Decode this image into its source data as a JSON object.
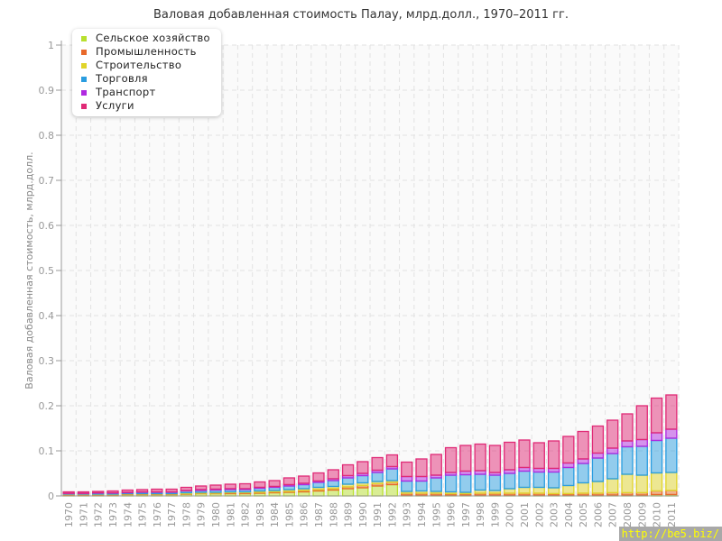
{
  "chart_data": {
    "type": "bar",
    "stacked": true,
    "title": "Валовая добавленная стоимость Палау, млрд.долл., 1970–2011 гг.",
    "xlabel": "",
    "ylabel": "Валовая добавленная стоимость, млрд.долл.",
    "ylim": [
      0,
      1
    ],
    "yticks": [
      "0",
      "0.1",
      "0.2",
      "0.3",
      "0.4",
      "0.5",
      "0.6",
      "0.7",
      "0.8",
      "0.9",
      "1"
    ],
    "grid": true,
    "legend_position": "top-left",
    "categories": [
      "1970",
      "1971",
      "1972",
      "1973",
      "1974",
      "1975",
      "1976",
      "1977",
      "1978",
      "1979",
      "1980",
      "1981",
      "1982",
      "1983",
      "1984",
      "1985",
      "1986",
      "1987",
      "1988",
      "1989",
      "1990",
      "1991",
      "1992",
      "1993",
      "1994",
      "1995",
      "1996",
      "1997",
      "1998",
      "1999",
      "2000",
      "2001",
      "2002",
      "2003",
      "2004",
      "2005",
      "2006",
      "2007",
      "2008",
      "2009",
      "2010",
      "2011"
    ],
    "series": [
      {
        "name": "Сельское хозяйство",
        "color": "#b8e02e",
        "values": [
          0.002,
          0.002,
          0.002,
          0.002,
          0.003,
          0.003,
          0.003,
          0.003,
          0.004,
          0.005,
          0.005,
          0.005,
          0.005,
          0.006,
          0.007,
          0.008,
          0.009,
          0.011,
          0.013,
          0.016,
          0.018,
          0.022,
          0.025,
          0.002,
          0.002,
          0.002,
          0.002,
          0.002,
          0.002,
          0.002,
          0.002,
          0.002,
          0.002,
          0.002,
          0.002,
          0.002,
          0.002,
          0.002,
          0.002,
          0.002,
          0.003,
          0.003
        ]
      },
      {
        "name": "Промышленность",
        "color": "#e8692a",
        "values": [
          0.001,
          0.001,
          0.001,
          0.001,
          0.001,
          0.001,
          0.001,
          0.001,
          0.001,
          0.001,
          0.001,
          0.002,
          0.002,
          0.002,
          0.002,
          0.002,
          0.003,
          0.003,
          0.003,
          0.004,
          0.005,
          0.005,
          0.005,
          0.004,
          0.004,
          0.004,
          0.003,
          0.003,
          0.004,
          0.004,
          0.004,
          0.004,
          0.004,
          0.003,
          0.003,
          0.004,
          0.004,
          0.005,
          0.005,
          0.005,
          0.008,
          0.009
        ]
      },
      {
        "name": "Строительство",
        "color": "#e0d42a",
        "values": [
          0.001,
          0.001,
          0.001,
          0.001,
          0.001,
          0.001,
          0.001,
          0.001,
          0.002,
          0.002,
          0.002,
          0.002,
          0.002,
          0.003,
          0.003,
          0.004,
          0.004,
          0.005,
          0.005,
          0.006,
          0.006,
          0.005,
          0.004,
          0.004,
          0.005,
          0.004,
          0.004,
          0.003,
          0.007,
          0.006,
          0.01,
          0.013,
          0.013,
          0.013,
          0.018,
          0.023,
          0.026,
          0.031,
          0.041,
          0.039,
          0.04,
          0.04
        ]
      },
      {
        "name": "Торговля",
        "color": "#2a9de0",
        "values": [
          0.001,
          0.001,
          0.002,
          0.002,
          0.002,
          0.003,
          0.003,
          0.003,
          0.004,
          0.004,
          0.005,
          0.005,
          0.005,
          0.006,
          0.007,
          0.008,
          0.009,
          0.011,
          0.013,
          0.014,
          0.016,
          0.02,
          0.026,
          0.023,
          0.022,
          0.03,
          0.037,
          0.039,
          0.035,
          0.034,
          0.034,
          0.036,
          0.034,
          0.035,
          0.04,
          0.043,
          0.052,
          0.056,
          0.061,
          0.064,
          0.072,
          0.076
        ]
      },
      {
        "name": "Транспорт",
        "color": "#b02ae0",
        "values": [
          0.001,
          0.001,
          0.001,
          0.001,
          0.001,
          0.001,
          0.001,
          0.001,
          0.001,
          0.002,
          0.002,
          0.002,
          0.002,
          0.002,
          0.002,
          0.003,
          0.003,
          0.003,
          0.004,
          0.005,
          0.005,
          0.005,
          0.005,
          0.01,
          0.01,
          0.006,
          0.006,
          0.008,
          0.008,
          0.006,
          0.008,
          0.008,
          0.008,
          0.008,
          0.01,
          0.01,
          0.011,
          0.012,
          0.013,
          0.015,
          0.017,
          0.02
        ]
      },
      {
        "name": "Услуги",
        "color": "#e02a76",
        "values": [
          0.003,
          0.003,
          0.003,
          0.004,
          0.005,
          0.005,
          0.006,
          0.006,
          0.007,
          0.008,
          0.009,
          0.01,
          0.011,
          0.012,
          0.013,
          0.015,
          0.016,
          0.018,
          0.02,
          0.024,
          0.026,
          0.028,
          0.026,
          0.032,
          0.039,
          0.046,
          0.055,
          0.057,
          0.059,
          0.06,
          0.061,
          0.061,
          0.057,
          0.061,
          0.059,
          0.061,
          0.06,
          0.062,
          0.06,
          0.075,
          0.077,
          0.076
        ]
      }
    ]
  },
  "watermark": "http://be5.biz/"
}
